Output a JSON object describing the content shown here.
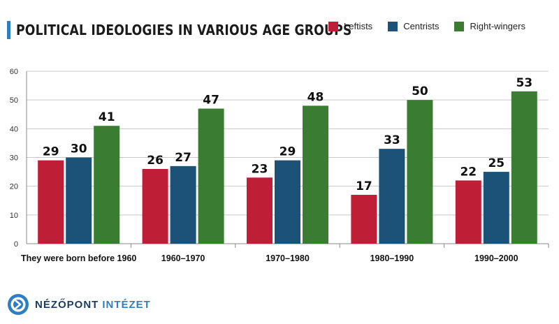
{
  "chart_data": {
    "type": "bar",
    "title": "POLITICAL IDEOLOGIES IN VARIOUS AGE GROUPS",
    "categories": [
      "They were born before 1960",
      "1960–1970",
      "1970–1980",
      "1980–1990",
      "1990–2000"
    ],
    "series": [
      {
        "name": "Leftists",
        "color": "#be1e36",
        "values": [
          29,
          26,
          23,
          17,
          22
        ]
      },
      {
        "name": "Centrists",
        "color": "#1c5178",
        "values": [
          30,
          27,
          29,
          33,
          25
        ]
      },
      {
        "name": "Right-wingers",
        "color": "#3a7d32",
        "values": [
          41,
          47,
          48,
          50,
          53
        ]
      }
    ],
    "ylim": [
      0,
      60
    ],
    "yticks": [
      0,
      10,
      20,
      30,
      40,
      50,
      60
    ],
    "grid": true,
    "legend_position": "top-right",
    "data_labels": true
  },
  "brand": {
    "name_part1": "NÉZŐPONT",
    "name_part2": "INTÉZET",
    "icon": "nezopont-logo-icon"
  }
}
